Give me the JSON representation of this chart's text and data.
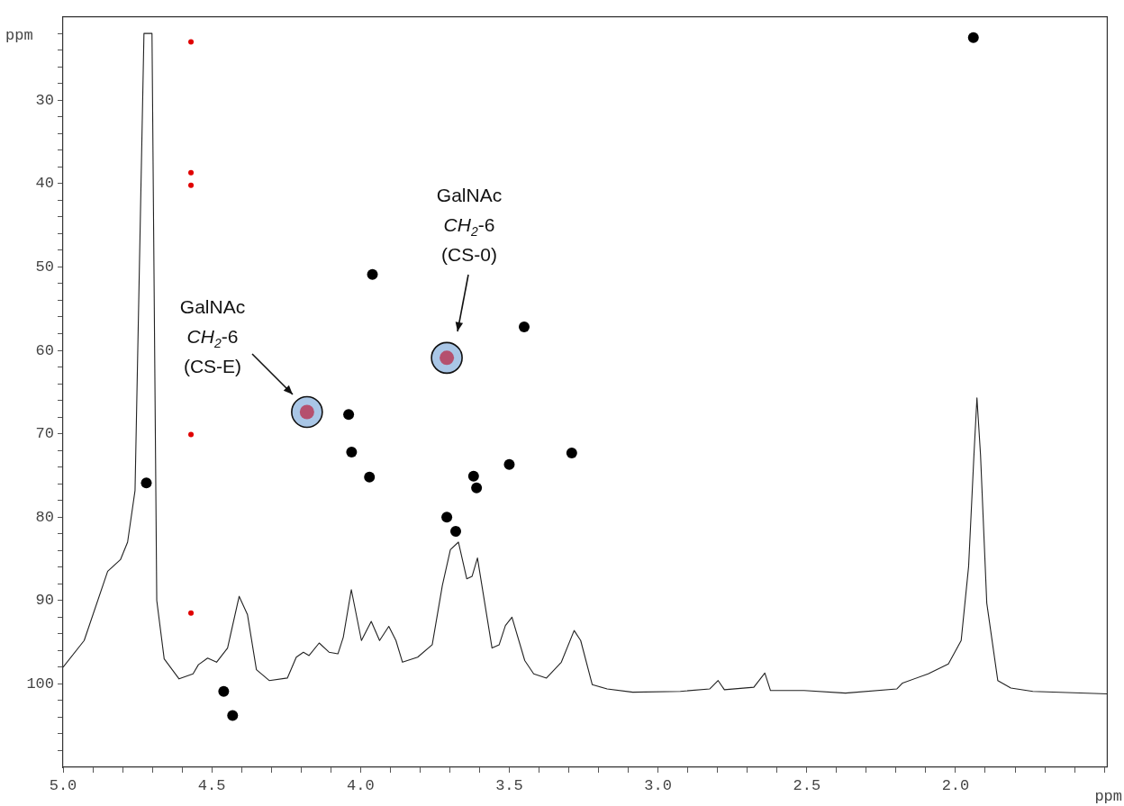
{
  "chart_data": {
    "type": "scatter",
    "xlabel": "ppm",
    "ylabel": "ppm",
    "xlim": [
      5.0,
      1.49
    ],
    "ylim": [
      110,
      20
    ],
    "xticks": [
      {
        "value": 5.0,
        "label": "5.0"
      },
      {
        "value": 4.9,
        "label": null
      },
      {
        "value": 4.8,
        "label": null
      },
      {
        "value": 4.7,
        "label": null
      },
      {
        "value": 4.6,
        "label": null
      },
      {
        "value": 4.5,
        "label": "4.5"
      },
      {
        "value": 4.4,
        "label": null
      },
      {
        "value": 4.3,
        "label": null
      },
      {
        "value": 4.2,
        "label": null
      },
      {
        "value": 4.1,
        "label": null
      },
      {
        "value": 4.0,
        "label": "4.0"
      },
      {
        "value": 3.9,
        "label": null
      },
      {
        "value": 3.8,
        "label": null
      },
      {
        "value": 3.7,
        "label": null
      },
      {
        "value": 3.6,
        "label": null
      },
      {
        "value": 3.5,
        "label": "3.5"
      },
      {
        "value": 3.4,
        "label": null
      },
      {
        "value": 3.3,
        "label": null
      },
      {
        "value": 3.2,
        "label": null
      },
      {
        "value": 3.1,
        "label": null
      },
      {
        "value": 3.0,
        "label": "3.0"
      },
      {
        "value": 2.9,
        "label": null
      },
      {
        "value": 2.8,
        "label": null
      },
      {
        "value": 2.7,
        "label": null
      },
      {
        "value": 2.6,
        "label": null
      },
      {
        "value": 2.5,
        "label": "2.5"
      },
      {
        "value": 2.4,
        "label": null
      },
      {
        "value": 2.3,
        "label": null
      },
      {
        "value": 2.2,
        "label": null
      },
      {
        "value": 2.1,
        "label": null
      },
      {
        "value": 2.0,
        "label": "2.0"
      },
      {
        "value": 1.9,
        "label": null
      },
      {
        "value": 1.8,
        "label": null
      },
      {
        "value": 1.7,
        "label": null
      },
      {
        "value": 1.6,
        "label": null
      },
      {
        "value": 1.5,
        "label": null
      }
    ],
    "yticks": [
      {
        "value": 22,
        "label": null
      },
      {
        "value": 24,
        "label": null
      },
      {
        "value": 26,
        "label": null
      },
      {
        "value": 28,
        "label": null
      },
      30,
      {
        "value": 32,
        "label": null
      },
      {
        "value": 34,
        "label": null
      },
      {
        "value": 36,
        "label": null
      },
      {
        "value": 38,
        "label": null
      },
      40,
      {
        "value": 42,
        "label": null
      },
      {
        "value": 44,
        "label": null
      },
      {
        "value": 46,
        "label": null
      },
      {
        "value": 48,
        "label": null
      },
      50,
      {
        "value": 52,
        "label": null
      },
      {
        "value": 54,
        "label": null
      },
      {
        "value": 56,
        "label": null
      },
      {
        "value": 58,
        "label": null
      },
      60,
      {
        "value": 62,
        "label": null
      },
      {
        "value": 64,
        "label": null
      },
      {
        "value": 66,
        "label": null
      },
      {
        "value": 68,
        "label": null
      },
      70,
      {
        "value": 72,
        "label": null
      },
      {
        "value": 74,
        "label": null
      },
      {
        "value": 76,
        "label": null
      },
      {
        "value": 78,
        "label": null
      },
      80,
      {
        "value": 82,
        "label": null
      },
      {
        "value": 84,
        "label": null
      },
      {
        "value": 86,
        "label": null
      },
      {
        "value": 88,
        "label": null
      },
      90,
      {
        "value": 92,
        "label": null
      },
      {
        "value": 94,
        "label": null
      },
      {
        "value": 96,
        "label": null
      },
      {
        "value": 98,
        "label": null
      },
      100,
      {
        "value": 102,
        "label": null
      },
      {
        "value": 104,
        "label": null
      },
      {
        "value": 106,
        "label": null
      },
      {
        "value": 108,
        "label": null
      }
    ],
    "marker": "circle",
    "series": [
      {
        "type": "line",
        "color": "#222222",
        "marker": "none",
        "x": [
          5.0,
          4.929,
          4.85,
          4.807,
          4.783,
          4.758,
          4.728,
          4.701,
          4.685,
          4.66,
          4.61,
          4.563,
          4.545,
          4.514,
          4.484,
          4.447,
          4.408,
          4.38,
          4.35,
          4.307,
          4.246,
          4.216,
          4.192,
          4.173,
          4.139,
          4.106,
          4.076,
          4.058,
          4.031,
          3.997,
          3.964,
          3.936,
          3.905,
          3.881,
          3.859,
          3.808,
          3.759,
          3.725,
          3.698,
          3.671,
          3.643,
          3.625,
          3.607,
          3.558,
          3.534,
          3.513,
          3.491,
          3.448,
          3.418,
          3.375,
          3.325,
          3.282,
          3.26,
          3.221,
          3.171,
          3.085,
          2.925,
          2.826,
          2.798,
          2.777,
          2.678,
          2.641,
          2.622,
          2.509,
          2.37,
          2.197,
          2.178,
          2.092,
          2.024,
          1.981,
          1.956,
          1.938,
          1.928,
          1.916,
          1.895,
          1.858,
          1.814,
          1.74,
          1.49
        ],
        "values": [
          98.0,
          94.8,
          86.5,
          85.1,
          83.0,
          76.8,
          22.0,
          22.0,
          90.0,
          97.0,
          99.4,
          98.8,
          97.7,
          96.9,
          97.4,
          95.7,
          89.5,
          91.7,
          98.3,
          99.6,
          99.3,
          96.8,
          96.2,
          96.6,
          95.1,
          96.2,
          96.4,
          94.4,
          88.7,
          94.8,
          92.5,
          94.8,
          93.1,
          94.8,
          97.4,
          96.8,
          95.3,
          88.2,
          83.9,
          83.0,
          87.4,
          87.1,
          84.9,
          95.7,
          95.3,
          93.0,
          92.0,
          97.2,
          98.8,
          99.3,
          97.4,
          93.6,
          94.8,
          100.1,
          100.6,
          101.0,
          100.9,
          100.6,
          99.6,
          100.7,
          100.4,
          98.7,
          100.8,
          100.8,
          101.1,
          100.6,
          99.9,
          98.8,
          97.6,
          94.8,
          85.9,
          72.5,
          65.7,
          72.5,
          90.3,
          99.6,
          100.5,
          100.9,
          101.2
        ]
      },
      {
        "color": "#000000",
        "x": [
          1.94,
          4.72,
          4.04,
          4.03,
          3.97,
          3.62,
          3.61,
          3.5,
          3.29,
          3.71,
          3.68,
          4.46,
          4.43,
          3.96,
          3.45
        ],
        "values": [
          22.5,
          75.9,
          67.7,
          72.2,
          75.2,
          75.1,
          76.5,
          73.7,
          72.3,
          80.0,
          81.7,
          100.9,
          103.8,
          50.9,
          57.2
        ]
      },
      {
        "color": "#a9c6e6",
        "x": [
          4.18,
          3.71
        ],
        "values": [
          67.4,
          60.9
        ]
      },
      {
        "color": "#b5506e",
        "x": [
          4.18,
          3.71
        ],
        "values": [
          67.4,
          60.9
        ]
      },
      {
        "color": "#e00000",
        "x": [
          4.57,
          4.57,
          4.57,
          4.57,
          4.57
        ],
        "values": [
          23.0,
          38.7,
          40.2,
          70.1,
          91.5
        ]
      }
    ],
    "annotations": [
      "GalNAc\nCH$_{2}$-6\n(CS-E)",
      "GalNAc\nCH$_{2}$-6\n(CS-0)"
    ]
  }
}
